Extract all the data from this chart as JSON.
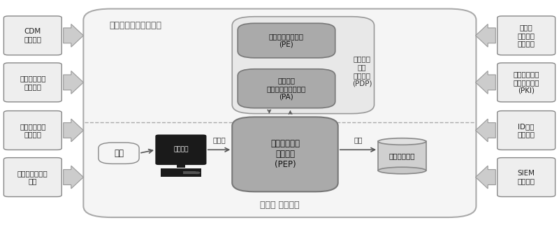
{
  "bg_color": "#ffffff",
  "control_plane_label": "コントロールプレーン",
  "data_plane_label": "データ プレーン",
  "left_labels": [
    "CDM\nシステム",
    "業界コンプラ\nイアンス",
    "脅威インテリ\nジェンス",
    "アクティビティ\nログ"
  ],
  "right_labels": [
    "データ\nアクセス\nポリシー",
    "公開インフラ\nストラクチャ\n(PKI)",
    "ID管理\nシステム",
    "SIEM\nシステム"
  ],
  "pe_label": "ポリシーエンジン\n(PE)",
  "pa_label": "ポリシー\nアドミニストレータ\n(PA)",
  "pdp_label": "ポリシー\n決定\nポイント\n(PDP)",
  "pep_label": "ポリシー実施\nポイント\n(PEP)",
  "subject_label": "主体",
  "system_label": "システム",
  "resource_label": "企業リソース",
  "untrusted_label": "未信頼",
  "trusted_label": "信頼",
  "box_fill": "#eeeeee",
  "box_edge": "#888888",
  "dark_fill": "#aaaaaa",
  "dark_edge": "#777777",
  "pdp_outer_fill": "#e8e8e8",
  "pdp_outer_edge": "#999999",
  "pep_fill": "#aaaaaa",
  "pep_edge": "#777777",
  "outer_fill": "#f5f5f5",
  "outer_edge": "#aaaaaa",
  "arrow_fill": "#cccccc",
  "arrow_edge": "#999999"
}
